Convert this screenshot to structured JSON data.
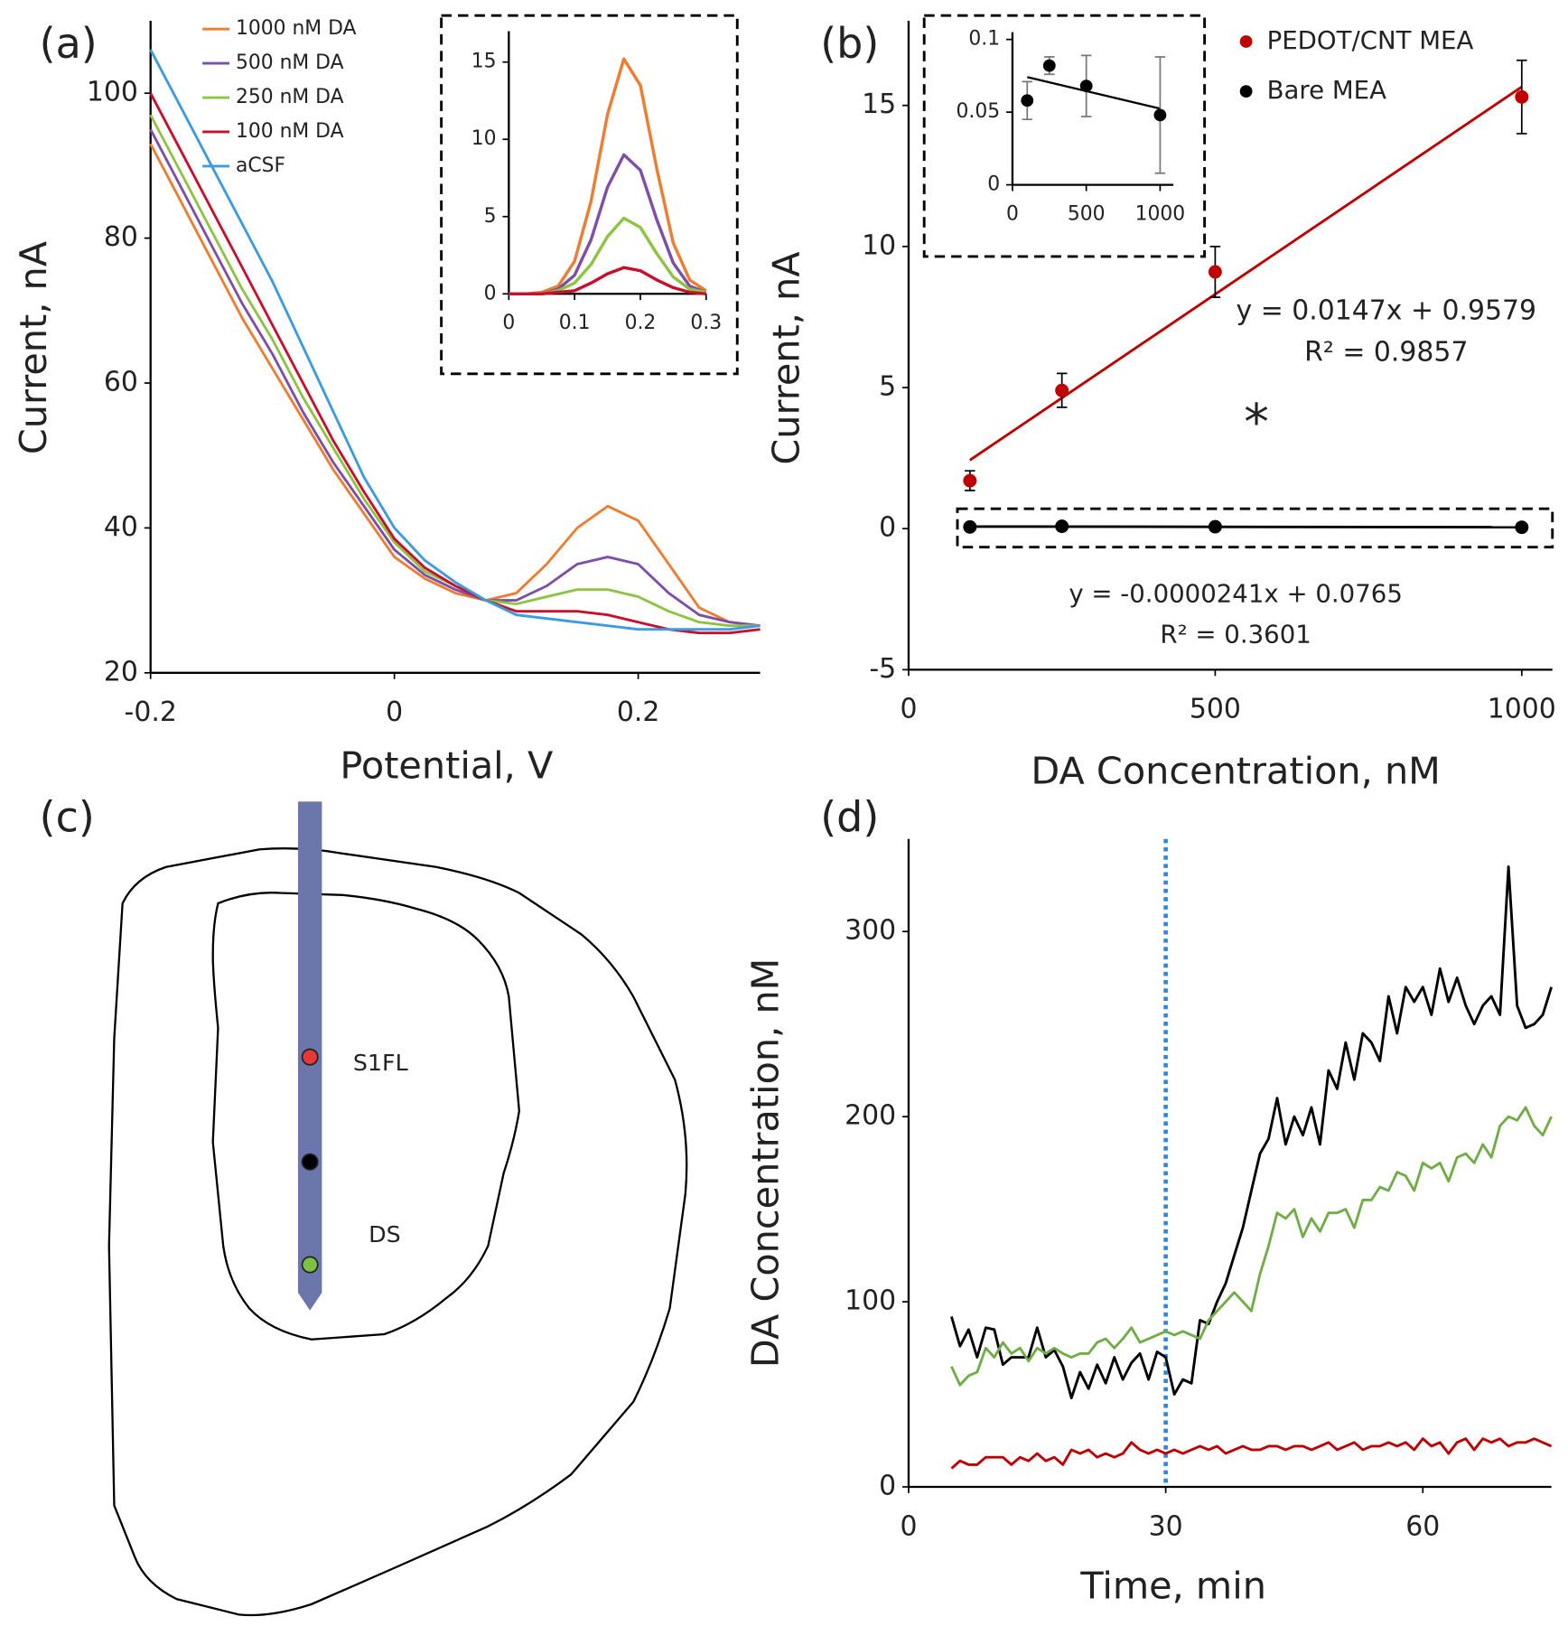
{
  "chart_data": [
    {
      "type": "line",
      "panel_label": "(a)",
      "x_label": "Potential, V",
      "y_label": "Current, nA",
      "x": [
        -0.2,
        -0.175,
        -0.15,
        -0.125,
        -0.1,
        -0.075,
        -0.05,
        -0.025,
        0,
        0.025,
        0.05,
        0.075,
        0.1,
        0.125,
        0.15,
        0.175,
        0.2,
        0.225,
        0.25,
        0.275,
        0.3
      ],
      "series": [
        {
          "name": "1000 nM DA",
          "color": "#ED7D31",
          "values": [
            93,
            85,
            77,
            69,
            62,
            55,
            48,
            42,
            36,
            33,
            31,
            30,
            31,
            35,
            40,
            43,
            41,
            35,
            29,
            27,
            26.5
          ]
        },
        {
          "name": "500 nM DA",
          "color": "#7E4FA8",
          "values": [
            95,
            87,
            79,
            71,
            64,
            56,
            49,
            43,
            37,
            33.5,
            31.5,
            30,
            30,
            32,
            35,
            36,
            35,
            31,
            28,
            27,
            26.5
          ]
        },
        {
          "name": "250 nM DA",
          "color": "#8DC443",
          "values": [
            97,
            89,
            81,
            73,
            66,
            58,
            51,
            44,
            38,
            34,
            32,
            30,
            29.5,
            30.5,
            31.5,
            31.5,
            30.5,
            28.5,
            27,
            26.5,
            26.5
          ]
        },
        {
          "name": "100 nM DA",
          "color": "#C8102E",
          "values": [
            100,
            92,
            84,
            76,
            68,
            60,
            52,
            45,
            38.5,
            34.5,
            32,
            30,
            28.5,
            28.5,
            28.5,
            28,
            27,
            26,
            25.5,
            25.5,
            26
          ]
        },
        {
          "name": "aCSF",
          "color": "#3D9BE0",
          "values": [
            106,
            98,
            90,
            82,
            74,
            65,
            56,
            47,
            40,
            35.5,
            32.5,
            30,
            28,
            27.5,
            27,
            26.5,
            26,
            26,
            26,
            26,
            26.5
          ]
        }
      ],
      "xlim": [
        -0.2,
        0.3
      ],
      "xticks": [
        -0.2,
        0,
        0.2
      ],
      "ylim": [
        20,
        110
      ],
      "yticks": [
        20,
        40,
        60,
        80,
        100
      ],
      "legend": "upper left"
    },
    {
      "type": "line",
      "x": [
        0,
        0.025,
        0.05,
        0.075,
        0.1,
        0.125,
        0.15,
        0.175,
        0.2,
        0.225,
        0.25,
        0.275,
        0.3
      ],
      "series": [
        {
          "color": "#ED7D31",
          "values": [
            0,
            0,
            0.1,
            0.5,
            2.1,
            6,
            11.6,
            15.2,
            13.5,
            8.1,
            3.3,
            0.9,
            0.2
          ]
        },
        {
          "color": "#7E4FA8",
          "values": [
            0,
            0,
            0,
            0.3,
            1.2,
            3.5,
            6.9,
            9,
            8,
            4.8,
            2,
            0.5,
            0.1
          ]
        },
        {
          "color": "#8DC443",
          "values": [
            0,
            0,
            0,
            0.2,
            0.7,
            1.9,
            3.7,
            4.9,
            4.3,
            2.6,
            1.1,
            0.3,
            0.1
          ]
        },
        {
          "color": "#C8102E",
          "values": [
            0,
            0,
            0,
            0.1,
            0.2,
            0.7,
            1.3,
            1.7,
            1.5,
            0.9,
            0.4,
            0.1,
            0
          ]
        }
      ],
      "xlim": [
        0,
        0.3
      ],
      "xticks": [
        0,
        0.1,
        0.2,
        0.3
      ],
      "ylim": [
        0,
        17
      ],
      "yticks": [
        0,
        5,
        10,
        15
      ]
    },
    {
      "type": "scatter",
      "panel_label": "(b)",
      "x_label": "DA Concentration, nM",
      "y_label": "Current, nA",
      "x": [
        100,
        250,
        500,
        1000
      ],
      "series": [
        {
          "name": "PEDOT/CNT MEA",
          "color": "#C00000",
          "values": [
            1.7,
            4.9,
            9.1,
            15.3
          ],
          "errors": [
            0.35,
            0.6,
            0.9,
            1.3
          ],
          "trendline": {
            "slope": 0.0147,
            "intercept": 0.9579
          }
        },
        {
          "name": "Bare MEA",
          "color": "#000000",
          "values": [
            0.058,
            0.082,
            0.068,
            0.048
          ],
          "trendline": {
            "slope": -2.41e-05,
            "intercept": 0.0765
          }
        }
      ],
      "annotations": [
        "y = 0.0147x + 0.9579",
        "R² = 0.9857",
        "*",
        "y = -0.0000241x + 0.0765",
        "R² = 0.3601"
      ],
      "xlim": [
        0,
        1050
      ],
      "xticks": [
        0,
        500,
        1000
      ],
      "ylim": [
        -5,
        18
      ],
      "yticks": [
        -5,
        0,
        5,
        10,
        15
      ],
      "legend": "upper right"
    },
    {
      "type": "scatter",
      "x": [
        100,
        250,
        500,
        1000
      ],
      "series": [
        {
          "color": "#000000",
          "values": [
            0.058,
            0.082,
            0.068,
            0.048
          ],
          "errors": [
            0.013,
            0.006,
            0.021,
            0.04
          ],
          "trendline": {
            "slope": -2.41e-05,
            "intercept": 0.0765
          }
        }
      ],
      "xlim": [
        0,
        1090
      ],
      "xticks": [
        0,
        500,
        1000
      ],
      "ylim": [
        0,
        0.105
      ],
      "yticks": [
        0,
        0.05,
        0.1
      ]
    },
    {
      "type": "line",
      "panel_label": "(d)",
      "x_label": "Time, min",
      "y_label": "DA Concentration, nM",
      "x": [
        5,
        6,
        7,
        8,
        9,
        10,
        11,
        12,
        13,
        14,
        15,
        16,
        17,
        18,
        19,
        20,
        21,
        22,
        23,
        24,
        25,
        26,
        27,
        28,
        29,
        30,
        31,
        32,
        33,
        34,
        35,
        36,
        37,
        38,
        39,
        40,
        41,
        42,
        43,
        44,
        45,
        46,
        47,
        48,
        49,
        50,
        51,
        52,
        53,
        54,
        55,
        56,
        57,
        58,
        59,
        60,
        61,
        62,
        63,
        64,
        65,
        66,
        67,
        68,
        69,
        70,
        71,
        72,
        73,
        74,
        75
      ],
      "series": [
        {
          "color": "#000000",
          "values": [
            92,
            76,
            85,
            70,
            86,
            85,
            66,
            70,
            70,
            70,
            86,
            70,
            74,
            65,
            48,
            62,
            53,
            66,
            56,
            70,
            58,
            67,
            72,
            58,
            73,
            70,
            50,
            58,
            56,
            90,
            88,
            100,
            110,
            125,
            140,
            160,
            180,
            188,
            210,
            185,
            200,
            190,
            205,
            185,
            225,
            215,
            240,
            220,
            245,
            240,
            230,
            265,
            245,
            270,
            262,
            270,
            255,
            280,
            262,
            275,
            260,
            250,
            260,
            265,
            255,
            335,
            260,
            248,
            250,
            255,
            270
          ]
        },
        {
          "color": "#70AD47",
          "values": [
            65,
            55,
            60,
            62,
            75,
            70,
            78,
            72,
            75,
            68,
            75,
            72,
            75,
            72,
            70,
            72,
            72,
            78,
            80,
            75,
            80,
            86,
            78,
            80,
            82,
            84,
            82,
            84,
            82,
            80,
            90,
            95,
            100,
            105,
            100,
            95,
            115,
            130,
            148,
            145,
            150,
            135,
            145,
            138,
            148,
            148,
            150,
            140,
            155,
            155,
            162,
            160,
            170,
            168,
            160,
            175,
            172,
            175,
            165,
            178,
            180,
            175,
            185,
            178,
            195,
            200,
            198,
            205,
            195,
            190,
            200
          ]
        },
        {
          "color": "#C00000",
          "values": [
            10,
            14,
            12,
            12,
            16,
            16,
            16,
            12,
            16,
            14,
            18,
            14,
            16,
            12,
            20,
            18,
            20,
            16,
            18,
            16,
            18,
            24,
            20,
            18,
            20,
            18,
            20,
            18,
            20,
            22,
            20,
            22,
            18,
            20,
            22,
            20,
            20,
            22,
            22,
            20,
            22,
            22,
            20,
            22,
            24,
            20,
            22,
            24,
            20,
            22,
            22,
            24,
            22,
            24,
            20,
            26,
            22,
            24,
            18,
            24,
            26,
            20,
            26,
            24,
            26,
            22,
            24,
            24,
            26,
            24,
            22
          ]
        }
      ],
      "vline": {
        "x": 30,
        "color": "#2E86DE"
      },
      "xlim": [
        0,
        75
      ],
      "xticks": [
        0,
        30,
        60
      ],
      "ylim": [
        0,
        350
      ],
      "yticks": [
        0,
        100,
        200,
        300
      ]
    }
  ],
  "diagram": {
    "panel_label": "(c)",
    "labels": [
      "S1FL",
      "DS"
    ]
  }
}
